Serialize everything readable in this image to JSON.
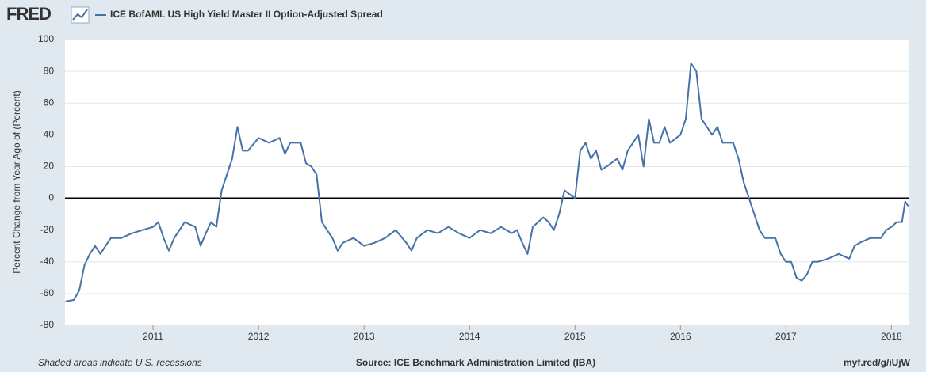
{
  "logo": "FRED",
  "chart_data": {
    "type": "line",
    "y_label": "Percent Change from Year Ago of (Percent)",
    "note": "Shaded areas indicate U.S. recessions",
    "source": "Source: ICE Benchmark Administration Limited (IBA)",
    "link": "myf.red/g/iUjW",
    "x": [
      2010.17,
      2010.25,
      2010.3,
      2010.35,
      2010.4,
      2010.45,
      2010.5,
      2010.55,
      2010.6,
      2010.7,
      2010.8,
      2010.9,
      2011.0,
      2011.05,
      2011.1,
      2011.15,
      2011.2,
      2011.25,
      2011.3,
      2011.4,
      2011.45,
      2011.5,
      2011.55,
      2011.6,
      2011.65,
      2011.7,
      2011.75,
      2011.8,
      2011.85,
      2011.9,
      2012.0,
      2012.1,
      2012.2,
      2012.25,
      2012.3,
      2012.4,
      2012.45,
      2012.5,
      2012.55,
      2012.6,
      2012.65,
      2012.7,
      2012.75,
      2012.8,
      2012.9,
      2013.0,
      2013.1,
      2013.2,
      2013.3,
      2013.4,
      2013.45,
      2013.5,
      2013.6,
      2013.7,
      2013.8,
      2013.9,
      2014.0,
      2014.1,
      2014.2,
      2014.3,
      2014.4,
      2014.45,
      2014.5,
      2014.55,
      2014.6,
      2014.7,
      2014.75,
      2014.8,
      2014.85,
      2014.9,
      2015.0,
      2015.05,
      2015.1,
      2015.15,
      2015.2,
      2015.25,
      2015.3,
      2015.4,
      2015.45,
      2015.5,
      2015.6,
      2015.65,
      2015.7,
      2015.75,
      2015.8,
      2015.85,
      2015.9,
      2016.0,
      2016.05,
      2016.1,
      2016.15,
      2016.2,
      2016.25,
      2016.3,
      2016.35,
      2016.4,
      2016.5,
      2016.55,
      2016.6,
      2016.65,
      2016.7,
      2016.75,
      2016.8,
      2016.9,
      2016.95,
      2017.0,
      2017.05,
      2017.1,
      2017.15,
      2017.2,
      2017.25,
      2017.3,
      2017.4,
      2017.5,
      2017.6,
      2017.65,
      2017.7,
      2017.8,
      2017.9,
      2017.95,
      2018.0,
      2018.05,
      2018.1,
      2018.13,
      2018.16
    ],
    "series": [
      {
        "name": "ICE BofAML US High Yield Master II Option-Adjusted Spread",
        "color": "#4572a7",
        "values": [
          -65,
          -64,
          -58,
          -42,
          -35,
          -30,
          -35,
          -30,
          -25,
          -25,
          -22,
          -20,
          -18,
          -15,
          -25,
          -33,
          -25,
          -20,
          -15,
          -18,
          -30,
          -22,
          -15,
          -18,
          5,
          15,
          25,
          45,
          30,
          30,
          38,
          35,
          38,
          28,
          35,
          35,
          22,
          20,
          15,
          -15,
          -20,
          -25,
          -33,
          -28,
          -25,
          -30,
          -28,
          -25,
          -20,
          -28,
          -33,
          -25,
          -20,
          -22,
          -18,
          -22,
          -25,
          -20,
          -22,
          -18,
          -22,
          -20,
          -28,
          -35,
          -18,
          -12,
          -15,
          -20,
          -10,
          5,
          0,
          30,
          35,
          25,
          30,
          18,
          20,
          25,
          18,
          30,
          40,
          20,
          50,
          35,
          35,
          45,
          35,
          40,
          50,
          85,
          80,
          50,
          45,
          40,
          45,
          35,
          35,
          25,
          10,
          0,
          -10,
          -20,
          -25,
          -25,
          -35,
          -40,
          -40,
          -50,
          -52,
          -48,
          -40,
          -40,
          -38,
          -35,
          -38,
          -30,
          -28,
          -25,
          -25,
          -20,
          -18,
          -15,
          -15,
          -2,
          -5
        ]
      }
    ],
    "xlim": [
      2010.165,
      2018.17
    ],
    "xticks": [
      2011,
      2012,
      2013,
      2014,
      2015,
      2016,
      2017,
      2018
    ],
    "ylim": [
      -80,
      100
    ],
    "yticks": [
      -80,
      -60,
      -40,
      -20,
      0,
      20,
      40,
      60,
      80,
      100
    ],
    "grid": true
  }
}
